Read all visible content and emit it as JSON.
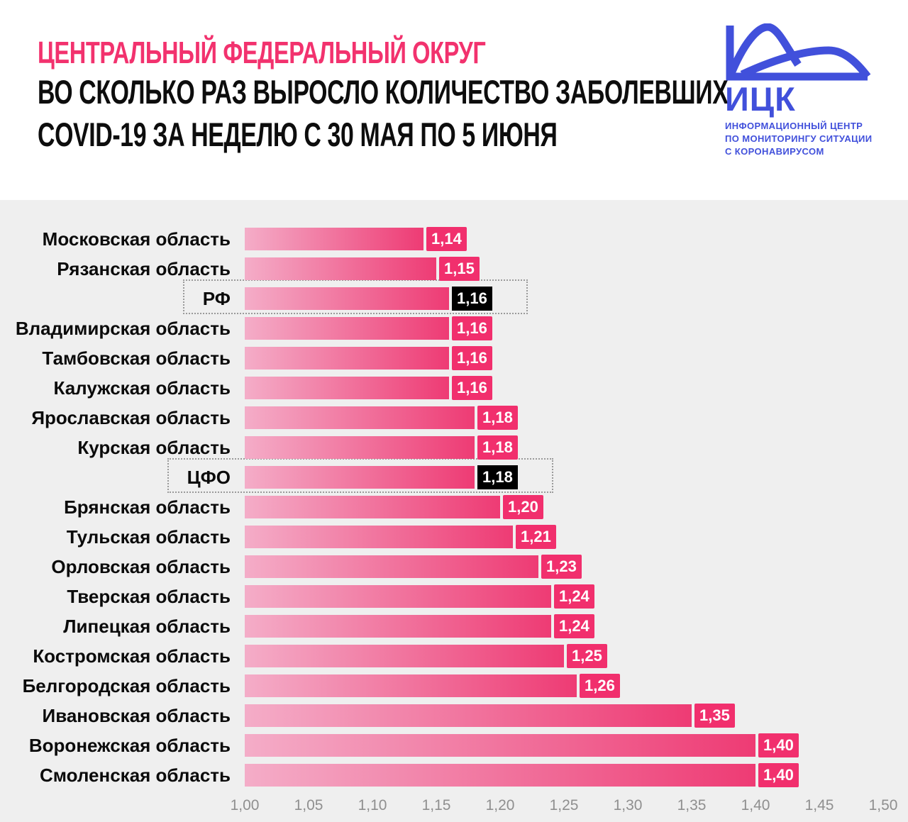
{
  "header": {
    "eyebrow": "ЦЕНТРАЛЬНЫЙ ФЕДЕРАЛЬНЫЙ ОКРУГ",
    "title_line1": "ВО СКОЛЬКО РАЗ ВЫРОСЛО КОЛИЧЕСТВО ЗАБОЛЕВШИХ",
    "title_line2": "COVID-19 ЗА НЕДЕЛЮ С 30 МАЯ ПО 5 ИЮНЯ"
  },
  "logo": {
    "acronym": "ИЦК",
    "subtitle_lines": [
      "ИНФОРМАЦИОННЫЙ ЦЕНТР",
      "ПО МОНИТОРИНГУ СИТУАЦИИ",
      "С КОРОНАВИРУСОМ"
    ],
    "icon": "flatten-the-curve-icon"
  },
  "colors": {
    "accent_pink": "#F2326E",
    "badge_pink": "#F12F6D",
    "bar_gradient_start": "#F4ADC8",
    "bar_gradient_end": "#EE3B74",
    "highlight_badge_black": "#000000",
    "logo_blue": "#4150DB",
    "chart_background": "#EFEFEF",
    "axis_text_gray": "#8F8F8F"
  },
  "chart_data": {
    "type": "bar",
    "orientation": "horizontal",
    "title": "ВО СКОЛЬКО РАЗ ВЫРОСЛО КОЛИЧЕСТВО ЗАБОЛЕВШИХ COVID-19 ЗА НЕДЕЛЮ С 30 МАЯ ПО 5 ИЮНЯ",
    "region_scope": "ЦЕНТРАЛЬНЫЙ ФЕДЕРАЛЬНЫЙ ОКРУГ",
    "xlim": [
      1.0,
      1.5
    ],
    "x_ticks": [
      "1,00",
      "1,05",
      "1,10",
      "1,15",
      "1,20",
      "1,25",
      "1,30",
      "1,35",
      "1,40",
      "1,45",
      "1,50"
    ],
    "grid": false,
    "legend": false,
    "rows": [
      {
        "label": "Московская область",
        "value": 1.14,
        "display": "1,14",
        "highlight": false
      },
      {
        "label": "Рязанская область",
        "value": 1.15,
        "display": "1,15",
        "highlight": false
      },
      {
        "label": "РФ",
        "value": 1.16,
        "display": "1,16",
        "highlight": true
      },
      {
        "label": "Владимирская область",
        "value": 1.16,
        "display": "1,16",
        "highlight": false
      },
      {
        "label": "Тамбовская область",
        "value": 1.16,
        "display": "1,16",
        "highlight": false
      },
      {
        "label": "Калужская область",
        "value": 1.16,
        "display": "1,16",
        "highlight": false
      },
      {
        "label": "Ярославская область",
        "value": 1.18,
        "display": "1,18",
        "highlight": false
      },
      {
        "label": "Курская область",
        "value": 1.18,
        "display": "1,18",
        "highlight": false
      },
      {
        "label": "ЦФО",
        "value": 1.18,
        "display": "1,18",
        "highlight": true
      },
      {
        "label": "Брянская область",
        "value": 1.2,
        "display": "1,20",
        "highlight": false
      },
      {
        "label": "Тульская область",
        "value": 1.21,
        "display": "1,21",
        "highlight": false
      },
      {
        "label": "Орловская область",
        "value": 1.23,
        "display": "1,23",
        "highlight": false
      },
      {
        "label": "Тверская область",
        "value": 1.24,
        "display": "1,24",
        "highlight": false
      },
      {
        "label": "Липецкая область",
        "value": 1.24,
        "display": "1,24",
        "highlight": false
      },
      {
        "label": "Костромская область",
        "value": 1.25,
        "display": "1,25",
        "highlight": false
      },
      {
        "label": "Белгородская область",
        "value": 1.26,
        "display": "1,26",
        "highlight": false
      },
      {
        "label": "Ивановская область",
        "value": 1.35,
        "display": "1,35",
        "highlight": false
      },
      {
        "label": "Воронежская область",
        "value": 1.4,
        "display": "1,40",
        "highlight": false
      },
      {
        "label": "Смоленская область",
        "value": 1.4,
        "display": "1,40",
        "highlight": false
      }
    ]
  }
}
